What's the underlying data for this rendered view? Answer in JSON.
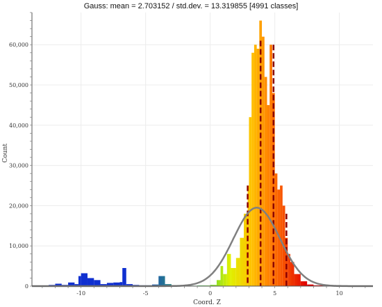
{
  "chart_data": {
    "type": "histogram",
    "title": "Gauss: mean = 2.703152 / std.dev. = 13.319855 [4991 classes]",
    "xlabel": "Coord. Z",
    "ylabel": "Count",
    "xlim": [
      -13.8,
      12.6
    ],
    "ylim": [
      0,
      68000
    ],
    "xticks": [
      -10,
      -5,
      0,
      5,
      10
    ],
    "xtick_labels": [
      "-10",
      "-5",
      "0",
      "5",
      "10"
    ],
    "yticks": [
      0,
      10000,
      20000,
      30000,
      40000,
      50000,
      60000
    ],
    "ytick_labels": [
      "0",
      "10,000",
      "20,000",
      "30,000",
      "40,000",
      "50,000",
      "60,000"
    ],
    "grid": true,
    "colormap": [
      "#1030d0",
      "#40d040",
      "#f0f000",
      "#ffc000",
      "#ff6000",
      "#e00000"
    ],
    "histogram_envelope": {
      "x": [
        -12.5,
        -12,
        -11.5,
        -11,
        -10.5,
        -10.2,
        -10,
        -9.5,
        -9,
        -8.5,
        -8,
        -7.5,
        -7,
        -6.8,
        -6.5,
        -6,
        -5.5,
        -5,
        -4.5,
        -4,
        -3.5,
        -3,
        -2,
        -1,
        0,
        0.5,
        0.8,
        1,
        1.3,
        1.6,
        2,
        2.3,
        2.6,
        2.9,
        3,
        3.2,
        3.4,
        3.6,
        3.8,
        4,
        4.2,
        4.4,
        4.6,
        4.8,
        5,
        5.2,
        5.4,
        5.6,
        5.8,
        6,
        6.2,
        6.5,
        7,
        7.5,
        8,
        9,
        10,
        11,
        12
      ],
      "y": [
        300,
        600,
        300,
        900,
        500,
        2500,
        3200,
        2000,
        1500,
        500,
        800,
        900,
        1000,
        4500,
        500,
        300,
        200,
        200,
        400,
        2500,
        500,
        200,
        100,
        150,
        300,
        1500,
        5000,
        3000,
        8000,
        4500,
        7000,
        12000,
        18000,
        25000,
        42000,
        58000,
        60000,
        59000,
        66000,
        62000,
        52000,
        45000,
        60000,
        48000,
        28000,
        24000,
        25000,
        20000,
        12000,
        8000,
        6000,
        3000,
        1200,
        400,
        200,
        100,
        50,
        30,
        10
      ]
    },
    "dashed_lines": [
      {
        "x": 2.9,
        "y_top": 25000
      },
      {
        "x": 3.9,
        "y_top": 61000
      },
      {
        "x": 4.9,
        "y_top": 60000
      },
      {
        "x": 5.9,
        "y_top": 18000
      }
    ],
    "gauss_curve": {
      "mean": 3.6,
      "peak": 19500,
      "sigma": 1.8
    }
  }
}
